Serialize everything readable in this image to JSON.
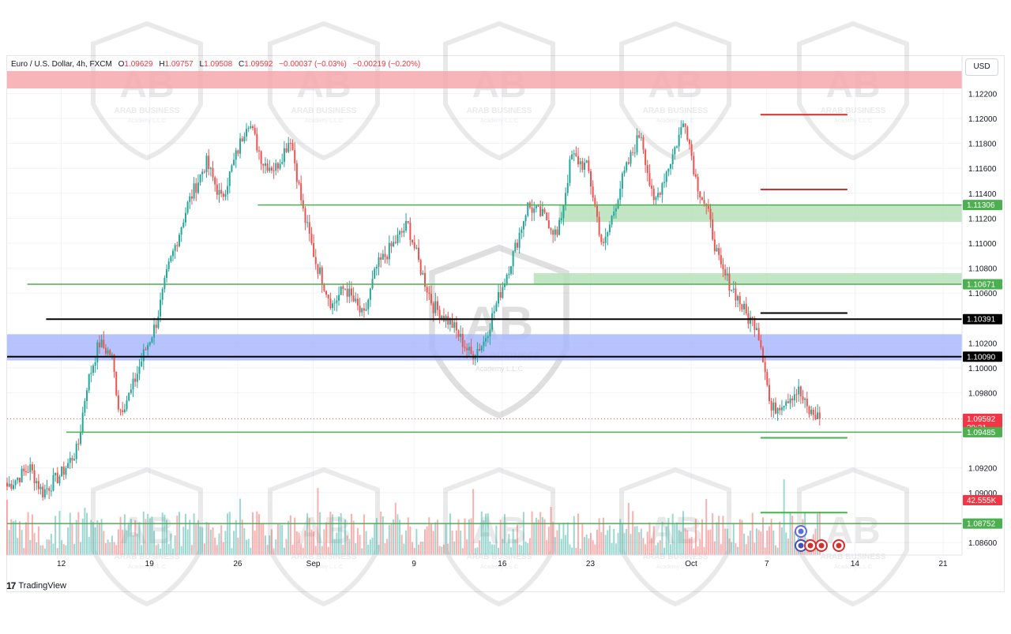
{
  "header": {
    "symbol": "Euro / U.S. Dollar, 4h, FXCM",
    "open_label": "O",
    "open": "1.09629",
    "high_label": "H",
    "high": "1.09757",
    "low_label": "L",
    "low": "1.09508",
    "close_label": "C",
    "close": "1.09592",
    "change": "−0.00037 (−0.03%)",
    "change2": "−0.00219 (−0.20%)"
  },
  "currency": "USD",
  "footer": {
    "logo": "17",
    "brand": "TradingView"
  },
  "watermark": {
    "text1": "ARAB BUSINESS",
    "text2": "Academy L.L.C"
  },
  "colors": {
    "up": "#26a69a",
    "down": "#ef5350",
    "grid": "#f0f3fa",
    "support": "#4caf50",
    "resistance_line": "#d32f2f",
    "black_line": "#000000",
    "red_zone": "#f7a8ad",
    "blue_zone": "#a9b9fb",
    "green_zone": "#b7e1b9"
  },
  "chart_data": {
    "type": "candlestick",
    "y_axis": {
      "ticks": [
        "1.12200",
        "1.12000",
        "1.11800",
        "1.11600",
        "1.11400",
        "1.11200",
        "1.11000",
        "1.10800",
        "1.10600",
        "1.10200",
        "1.10000",
        "1.09800",
        "1.09200",
        "1.09000",
        "1.08600"
      ],
      "range": [
        1.085,
        1.125
      ]
    },
    "x_axis": {
      "ticks": [
        {
          "label": "12",
          "day": 0
        },
        {
          "label": "19",
          "day": 7
        },
        {
          "label": "26",
          "day": 14
        },
        {
          "label": "Sep",
          "day": 20
        },
        {
          "label": "9",
          "day": 28
        },
        {
          "label": "16",
          "day": 35
        },
        {
          "label": "23",
          "day": 42
        },
        {
          "label": "Oct",
          "day": 50
        },
        {
          "label": "7",
          "day": 56
        },
        {
          "label": "14",
          "day": 63
        },
        {
          "label": "21",
          "day": 70
        }
      ],
      "range": [
        -4.3,
        71.5
      ]
    },
    "price_labels": [
      {
        "value": "1.11306",
        "price": 1.11306,
        "bg": "#4caf50",
        "fg": "#ffffff"
      },
      {
        "value": "1.10671",
        "price": 1.10671,
        "bg": "#4caf50",
        "fg": "#ffffff"
      },
      {
        "value": "1.10391",
        "price": 1.10391,
        "bg": "#000000",
        "fg": "#ffffff"
      },
      {
        "value": "1.10090",
        "price": 1.1009,
        "bg": "#000000",
        "fg": "#ffffff"
      },
      {
        "value": "1.09592",
        "price": 1.09592,
        "bg": "#f23645",
        "fg": "#ffffff",
        "sub": "29:31"
      },
      {
        "value": "1.09485",
        "price": 1.09485,
        "bg": "#4caf50",
        "fg": "#ffffff"
      },
      {
        "value": "42.555K",
        "price": 1.0894,
        "bg": "#f23645",
        "fg": "#ffffff"
      },
      {
        "value": "1.08752",
        "price": 1.08752,
        "bg": "#4caf50",
        "fg": "#ffffff"
      }
    ],
    "zones": [
      {
        "name": "red-supply-zone",
        "from": 1.1224,
        "to": 1.1238,
        "day_from": -4.3,
        "day_to": 71.5,
        "color": "#f7a8ad"
      },
      {
        "name": "blue-demand-zone",
        "from": 1.1006,
        "to": 1.1027,
        "day_from": -4.3,
        "day_to": 71.5,
        "color": "#a9b9fb"
      },
      {
        "name": "green-zone-upper",
        "from": 1.1117,
        "to": 1.11306,
        "day_from": 39.5,
        "day_to": 71.5,
        "color": "#b7e1b9"
      },
      {
        "name": "green-zone-lower",
        "from": 1.10671,
        "to": 1.1076,
        "day_from": 37.5,
        "day_to": 71.5,
        "color": "#b7e1b9"
      }
    ],
    "lines": [
      {
        "name": "support-1.11306",
        "price": 1.11306,
        "day_from": 15.6,
        "day_to": 71.5,
        "color": "#4caf50",
        "w": 1.5
      },
      {
        "name": "support-1.10671",
        "price": 1.10671,
        "day_from": -2.7,
        "day_to": 71.5,
        "color": "#4caf50",
        "w": 1.5
      },
      {
        "name": "level-1.10391",
        "price": 1.10391,
        "day_from": -1.2,
        "day_to": 71.5,
        "color": "#000000",
        "w": 2
      },
      {
        "name": "level-1.10090",
        "price": 1.1009,
        "day_from": -4.3,
        "day_to": 71.5,
        "color": "#000000",
        "w": 2
      },
      {
        "name": "support-1.09485",
        "price": 1.09485,
        "day_from": 0.4,
        "day_to": 71.5,
        "color": "#4caf50",
        "w": 1.5
      },
      {
        "name": "support-1.08752",
        "price": 1.08752,
        "day_from": -4.3,
        "day_to": 71.5,
        "color": "#4caf50",
        "w": 1.5
      },
      {
        "name": "target-1.12030",
        "price": 1.1203,
        "day_from": 55.5,
        "day_to": 62.4,
        "color": "#d32f2f",
        "w": 2
      },
      {
        "name": "target-1.11430",
        "price": 1.1143,
        "day_from": 55.5,
        "day_to": 62.4,
        "color": "#d32f2f",
        "w": 2
      },
      {
        "name": "target-1.10440",
        "price": 1.1044,
        "day_from": 55.5,
        "day_to": 62.4,
        "color": "#000000",
        "w": 2
      },
      {
        "name": "target-1.09440",
        "price": 1.0944,
        "day_from": 55.5,
        "day_to": 62.4,
        "color": "#4caf50",
        "w": 2
      },
      {
        "name": "target-1.08840",
        "price": 1.0884,
        "day_from": 55.5,
        "day_to": 62.4,
        "color": "#4caf50",
        "w": 2
      }
    ],
    "current_price": 1.09592,
    "anchors": [
      {
        "day": -4.3,
        "price": 1.0905
      },
      {
        "day": -2.5,
        "price": 1.092
      },
      {
        "day": -1.5,
        "price": 1.09
      },
      {
        "day": 0,
        "price": 1.0915
      },
      {
        "day": 1.3,
        "price": 1.0935
      },
      {
        "day": 2.0,
        "price": 1.0985
      },
      {
        "day": 3.0,
        "price": 1.102
      },
      {
        "day": 4.0,
        "price": 1.101
      },
      {
        "day": 4.6,
        "price": 1.0965
      },
      {
        "day": 5.5,
        "price": 1.098
      },
      {
        "day": 6.5,
        "price": 1.101
      },
      {
        "day": 7.5,
        "price": 1.1035
      },
      {
        "day": 8.5,
        "price": 1.108
      },
      {
        "day": 10,
        "price": 1.113
      },
      {
        "day": 11.5,
        "price": 1.1165
      },
      {
        "day": 12.7,
        "price": 1.1135
      },
      {
        "day": 14.2,
        "price": 1.118
      },
      {
        "day": 14.8,
        "price": 1.12
      },
      {
        "day": 16,
        "price": 1.1165
      },
      {
        "day": 17,
        "price": 1.116
      },
      {
        "day": 18.2,
        "price": 1.1185
      },
      {
        "day": 19.2,
        "price": 1.1125
      },
      {
        "day": 20.2,
        "price": 1.1085
      },
      {
        "day": 21.5,
        "price": 1.105
      },
      {
        "day": 22.5,
        "price": 1.1065
      },
      {
        "day": 24,
        "price": 1.104
      },
      {
        "day": 25,
        "price": 1.108
      },
      {
        "day": 27.5,
        "price": 1.1115
      },
      {
        "day": 28.5,
        "price": 1.108
      },
      {
        "day": 29.5,
        "price": 1.105
      },
      {
        "day": 31,
        "price": 1.1035
      },
      {
        "day": 32.5,
        "price": 1.101
      },
      {
        "day": 33.5,
        "price": 1.102
      },
      {
        "day": 35,
        "price": 1.1065
      },
      {
        "day": 36,
        "price": 1.1095
      },
      {
        "day": 37,
        "price": 1.113
      },
      {
        "day": 38.5,
        "price": 1.112
      },
      {
        "day": 39.4,
        "price": 1.1105
      },
      {
        "day": 40.5,
        "price": 1.117
      },
      {
        "day": 41.8,
        "price": 1.116
      },
      {
        "day": 43,
        "price": 1.1095
      },
      {
        "day": 44.5,
        "price": 1.115
      },
      {
        "day": 46,
        "price": 1.119
      },
      {
        "day": 47,
        "price": 1.113
      },
      {
        "day": 48.5,
        "price": 1.117
      },
      {
        "day": 49.5,
        "price": 1.12
      },
      {
        "day": 50.4,
        "price": 1.115
      },
      {
        "day": 51.3,
        "price": 1.1125
      },
      {
        "day": 52.3,
        "price": 1.108
      },
      {
        "day": 53.5,
        "price": 1.106
      },
      {
        "day": 54.5,
        "price": 1.104
      },
      {
        "day": 55.2,
        "price": 1.1035
      },
      {
        "day": 55.8,
        "price": 1.1005
      },
      {
        "day": 56.3,
        "price": 1.0965
      },
      {
        "day": 57.5,
        "price": 1.0975
      },
      {
        "day": 58.5,
        "price": 1.0982
      },
      {
        "day": 59.3,
        "price": 1.0965
      },
      {
        "day": 60.2,
        "price": 1.096
      }
    ]
  }
}
